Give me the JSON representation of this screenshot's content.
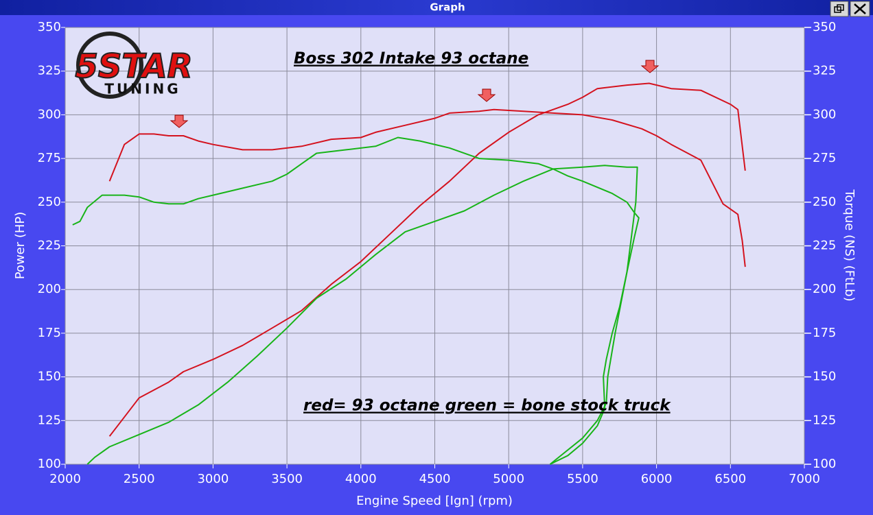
{
  "window": {
    "title": "Graph"
  },
  "logo": {
    "brand": "5STAR",
    "subtitle": "TUNING"
  },
  "chart_data": {
    "type": "line",
    "annotations": [
      "Boss 302 Intake  93 octane",
      "red= 93 octane green = bone stock truck"
    ],
    "x_label": "Engine Speed [Ign] (rpm)",
    "y_label": "Power (HP)",
    "y2_label": "Torque (NS) (FtLb)",
    "xlim": [
      2000,
      7000
    ],
    "xticks": [
      2000,
      2500,
      3000,
      3500,
      4000,
      4500,
      5000,
      5500,
      6000,
      6500,
      7000
    ],
    "ylim": [
      100,
      350
    ],
    "yticks": [
      100,
      125,
      150,
      175,
      200,
      225,
      250,
      275,
      300,
      325,
      350
    ],
    "y2lim": [
      100,
      350
    ],
    "y2ticks": [
      100,
      125,
      150,
      175,
      200,
      225,
      250,
      275,
      300,
      325,
      350
    ],
    "grid": true,
    "series": [
      {
        "name": "red power",
        "color": "#d4121e",
        "axis": "y",
        "x": [
          2300,
          2400,
          2500,
          2700,
          2800,
          3000,
          3200,
          3400,
          3600,
          3800,
          4000,
          4200,
          4400,
          4600,
          4700,
          4800,
          5000,
          5200,
          5400,
          5500,
          5600,
          5800,
          5950,
          6100,
          6300,
          6500,
          6550,
          6600
        ],
        "values": [
          116,
          127,
          138,
          147,
          153,
          160,
          168,
          178,
          188,
          203,
          216,
          232,
          248,
          262,
          270,
          278,
          290,
          300,
          306,
          310,
          315,
          317,
          318,
          315,
          314,
          306,
          303,
          268
        ]
      },
      {
        "name": "red torque",
        "color": "#d4121e",
        "axis": "y2",
        "x": [
          2300,
          2400,
          2500,
          2600,
          2700,
          2800,
          2900,
          3000,
          3200,
          3400,
          3600,
          3800,
          4000,
          4100,
          4300,
          4500,
          4600,
          4800,
          4900,
          5100,
          5300,
          5500,
          5700,
          5900,
          6000,
          6100,
          6300,
          6450,
          6550,
          6580,
          6600
        ],
        "values": [
          262,
          283,
          289,
          289,
          288,
          288,
          285,
          283,
          280,
          280,
          282,
          286,
          287,
          290,
          294,
          298,
          301,
          302,
          303,
          302,
          301,
          300,
          297,
          292,
          288,
          283,
          274,
          249,
          243,
          228,
          213
        ]
      },
      {
        "name": "green power",
        "color": "#18b418",
        "axis": "y",
        "x": [
          2150,
          2200,
          2300,
          2500,
          2700,
          2900,
          3100,
          3300,
          3500,
          3700,
          3900,
          4100,
          4300,
          4500,
          4700,
          4900,
          5100,
          5300,
          5500,
          5650,
          5800,
          5870,
          5860,
          5800,
          5720,
          5670,
          5660,
          5600,
          5500,
          5280
        ],
        "values": [
          100,
          104,
          110,
          117,
          124,
          134,
          147,
          162,
          178,
          195,
          206,
          220,
          233,
          239,
          245,
          254,
          262,
          269,
          270,
          271,
          270,
          270,
          250,
          210,
          175,
          150,
          135,
          125,
          115,
          100
        ]
      },
      {
        "name": "green torque",
        "color": "#18b418",
        "axis": "y2",
        "x": [
          2050,
          2100,
          2150,
          2250,
          2400,
          2500,
          2600,
          2700,
          2800,
          2900,
          3000,
          3200,
          3400,
          3500,
          3600,
          3700,
          3900,
          4100,
          4250,
          4400,
          4600,
          4800,
          5000,
          5200,
          5300,
          5400,
          5500,
          5700,
          5800,
          5850,
          5880,
          5850,
          5800,
          5750,
          5700,
          5660,
          5640,
          5650,
          5600,
          5500,
          5400,
          5280
        ],
        "values": [
          237,
          239,
          247,
          254,
          254,
          253,
          250,
          249,
          249,
          252,
          254,
          258,
          262,
          266,
          272,
          278,
          280,
          282,
          287,
          285,
          281,
          275,
          274,
          272,
          269,
          265,
          262,
          255,
          250,
          244,
          241,
          230,
          210,
          190,
          175,
          160,
          150,
          132,
          122,
          112,
          105,
          100
        ]
      }
    ]
  }
}
